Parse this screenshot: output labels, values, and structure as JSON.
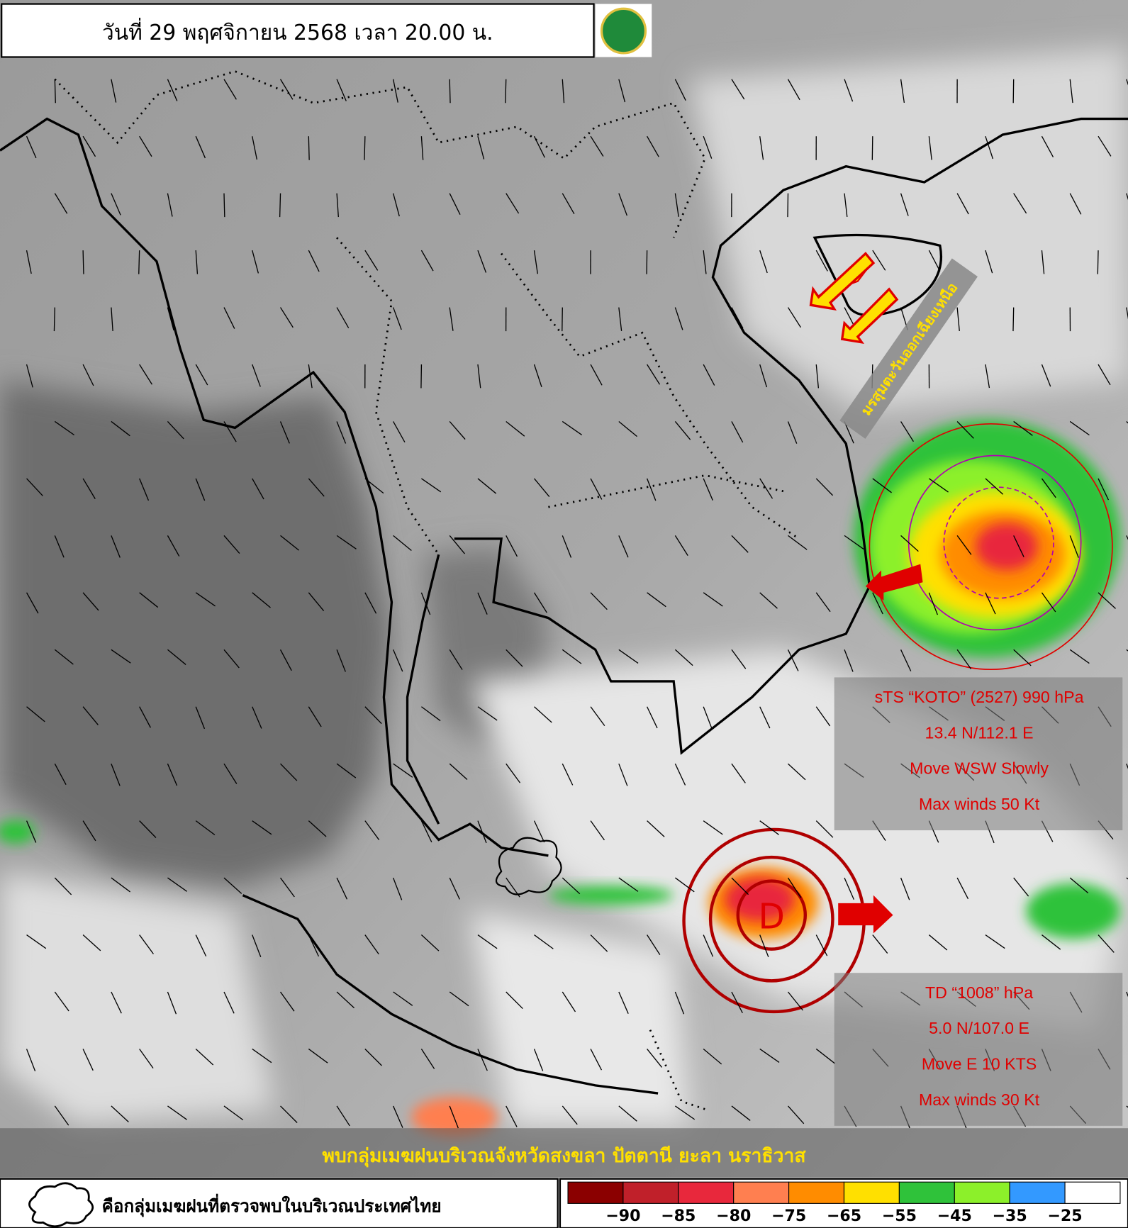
{
  "header": {
    "title": "วันที่ 29 พฤศจิกายน 2568 เวลา 20.00 น."
  },
  "annotations": {
    "monsoon": "มรสุมตะวันออกเฉียงเหนือ",
    "rain_cloud_note": "พบกลุ่มเมฆฝนบริเวณจังหวัดสงขลา ปัตตานี ยะลา นราธิวาส"
  },
  "storms": [
    {
      "lines": [
        "sTS “KOTO” (2527) 990 hPa",
        "13.4 N/112.1 E",
        "Move WSW Slowly",
        "Max winds 50 Kt"
      ]
    },
    {
      "symbol": "D",
      "lines": [
        "TD “1008” hPa",
        "5.0 N/107.0 E",
        "Move E 10 KTS",
        "Max winds 30 Kt"
      ]
    }
  ],
  "legend": {
    "cloud_label": "คือกลุ่มเมฆฝนที่ตรวจพบในบริเวณประเทศไทย",
    "colors": [
      "#8b0000",
      "#c0202a",
      "#e8283c",
      "#ff7f50",
      "#ff8c00",
      "#ffe000",
      "#2fc23a",
      "#8cf02a",
      "#3399ff",
      "#ffffff"
    ],
    "labels": [
      "−90",
      "−85",
      "−80",
      "−75",
      "−65",
      "−55",
      "−45",
      "−35",
      "−25"
    ]
  }
}
